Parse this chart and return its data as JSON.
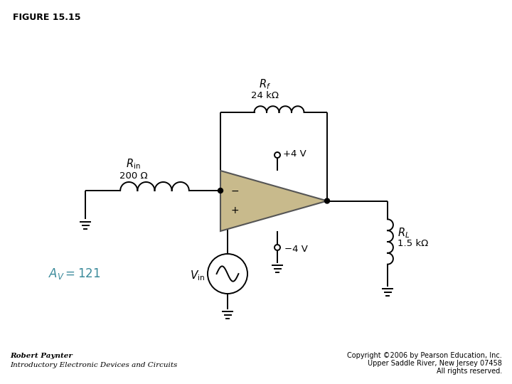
{
  "bg_color": "#ffffff",
  "wire_color": "#000000",
  "opamp_color": "#c8ba8c",
  "opamp_edge": "#555555",
  "dot_color": "#000000",
  "av_color": "#3a8a9a",
  "label_color": "#000000",
  "title": "FIGURE 15.15",
  "Rf_label": "R_f",
  "Rf_val": "24 kΩ",
  "Rin_label": "R_in",
  "Rin_val": "200 Ω",
  "RL_label": "R_L",
  "RL_val": "1.5 kΩ",
  "Vplus": "+4 V",
  "Vminus": "−4 V",
  "Av_text": "A_v = 121",
  "Vin_label": "V_in",
  "plus_sign": "+",
  "minus_sign": "−",
  "author": "Robert Paynter",
  "book": "Introductory Electronic Devices and Circuits",
  "copyright": "Copyright ©2006 by Pearson Education, Inc.",
  "address": "Upper Saddle River, New Jersey 07458",
  "rights": "All rights reserved."
}
